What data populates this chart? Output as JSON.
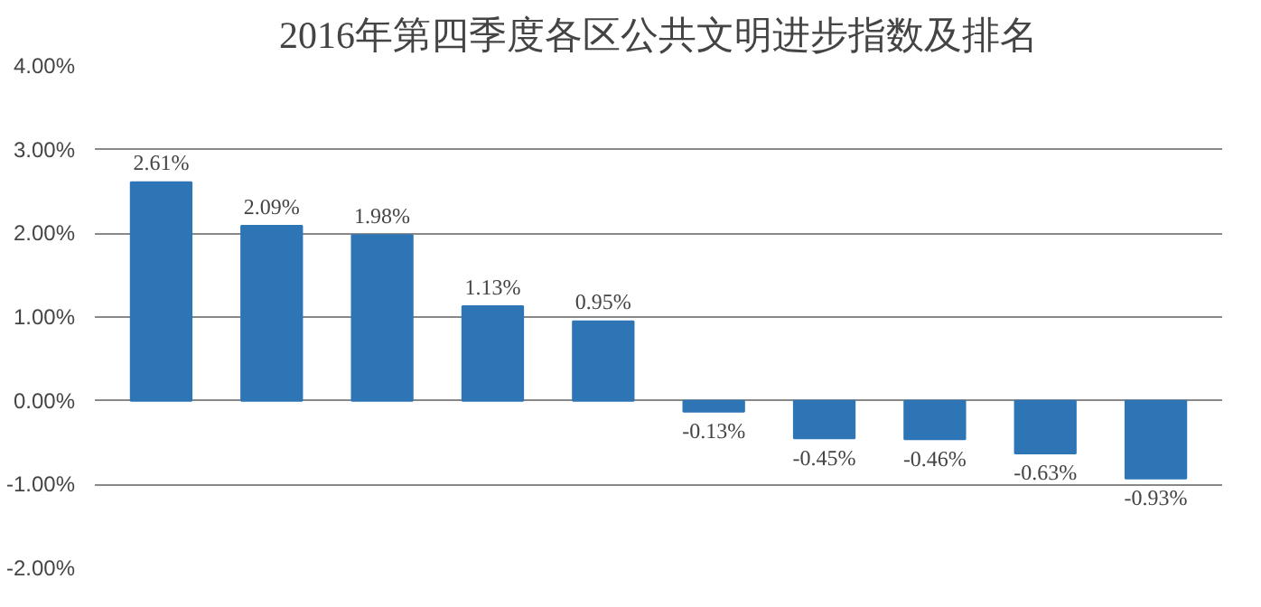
{
  "chart_data": {
    "type": "bar",
    "title": "2016年第四季度各区公共文明进步指数及排名",
    "categories": [
      null,
      null,
      null,
      null,
      null,
      null,
      null,
      null,
      null,
      null
    ],
    "values": [
      2.61,
      2.09,
      1.98,
      1.13,
      0.95,
      -0.13,
      -0.45,
      -0.46,
      -0.63,
      -0.93
    ],
    "value_labels": [
      "2.61%",
      "2.09%",
      "1.98%",
      "1.13%",
      "0.95%",
      "-0.13%",
      "-0.45%",
      "-0.46%",
      "-0.63%",
      "-0.93%"
    ],
    "color": "#2e75b6",
    "ylim": [
      -2,
      4
    ],
    "yticks": [
      {
        "value": -2,
        "label": "-2.00%"
      },
      {
        "value": -1,
        "label": "-1.00%"
      },
      {
        "value": 0,
        "label": "0.00%"
      },
      {
        "value": 1,
        "label": "1.00%"
      },
      {
        "value": 2,
        "label": "2.00%"
      },
      {
        "value": 3,
        "label": "3.00%"
      },
      {
        "value": 4,
        "label": "4.00%"
      }
    ],
    "grid": "y",
    "tick_labels": "y"
  }
}
